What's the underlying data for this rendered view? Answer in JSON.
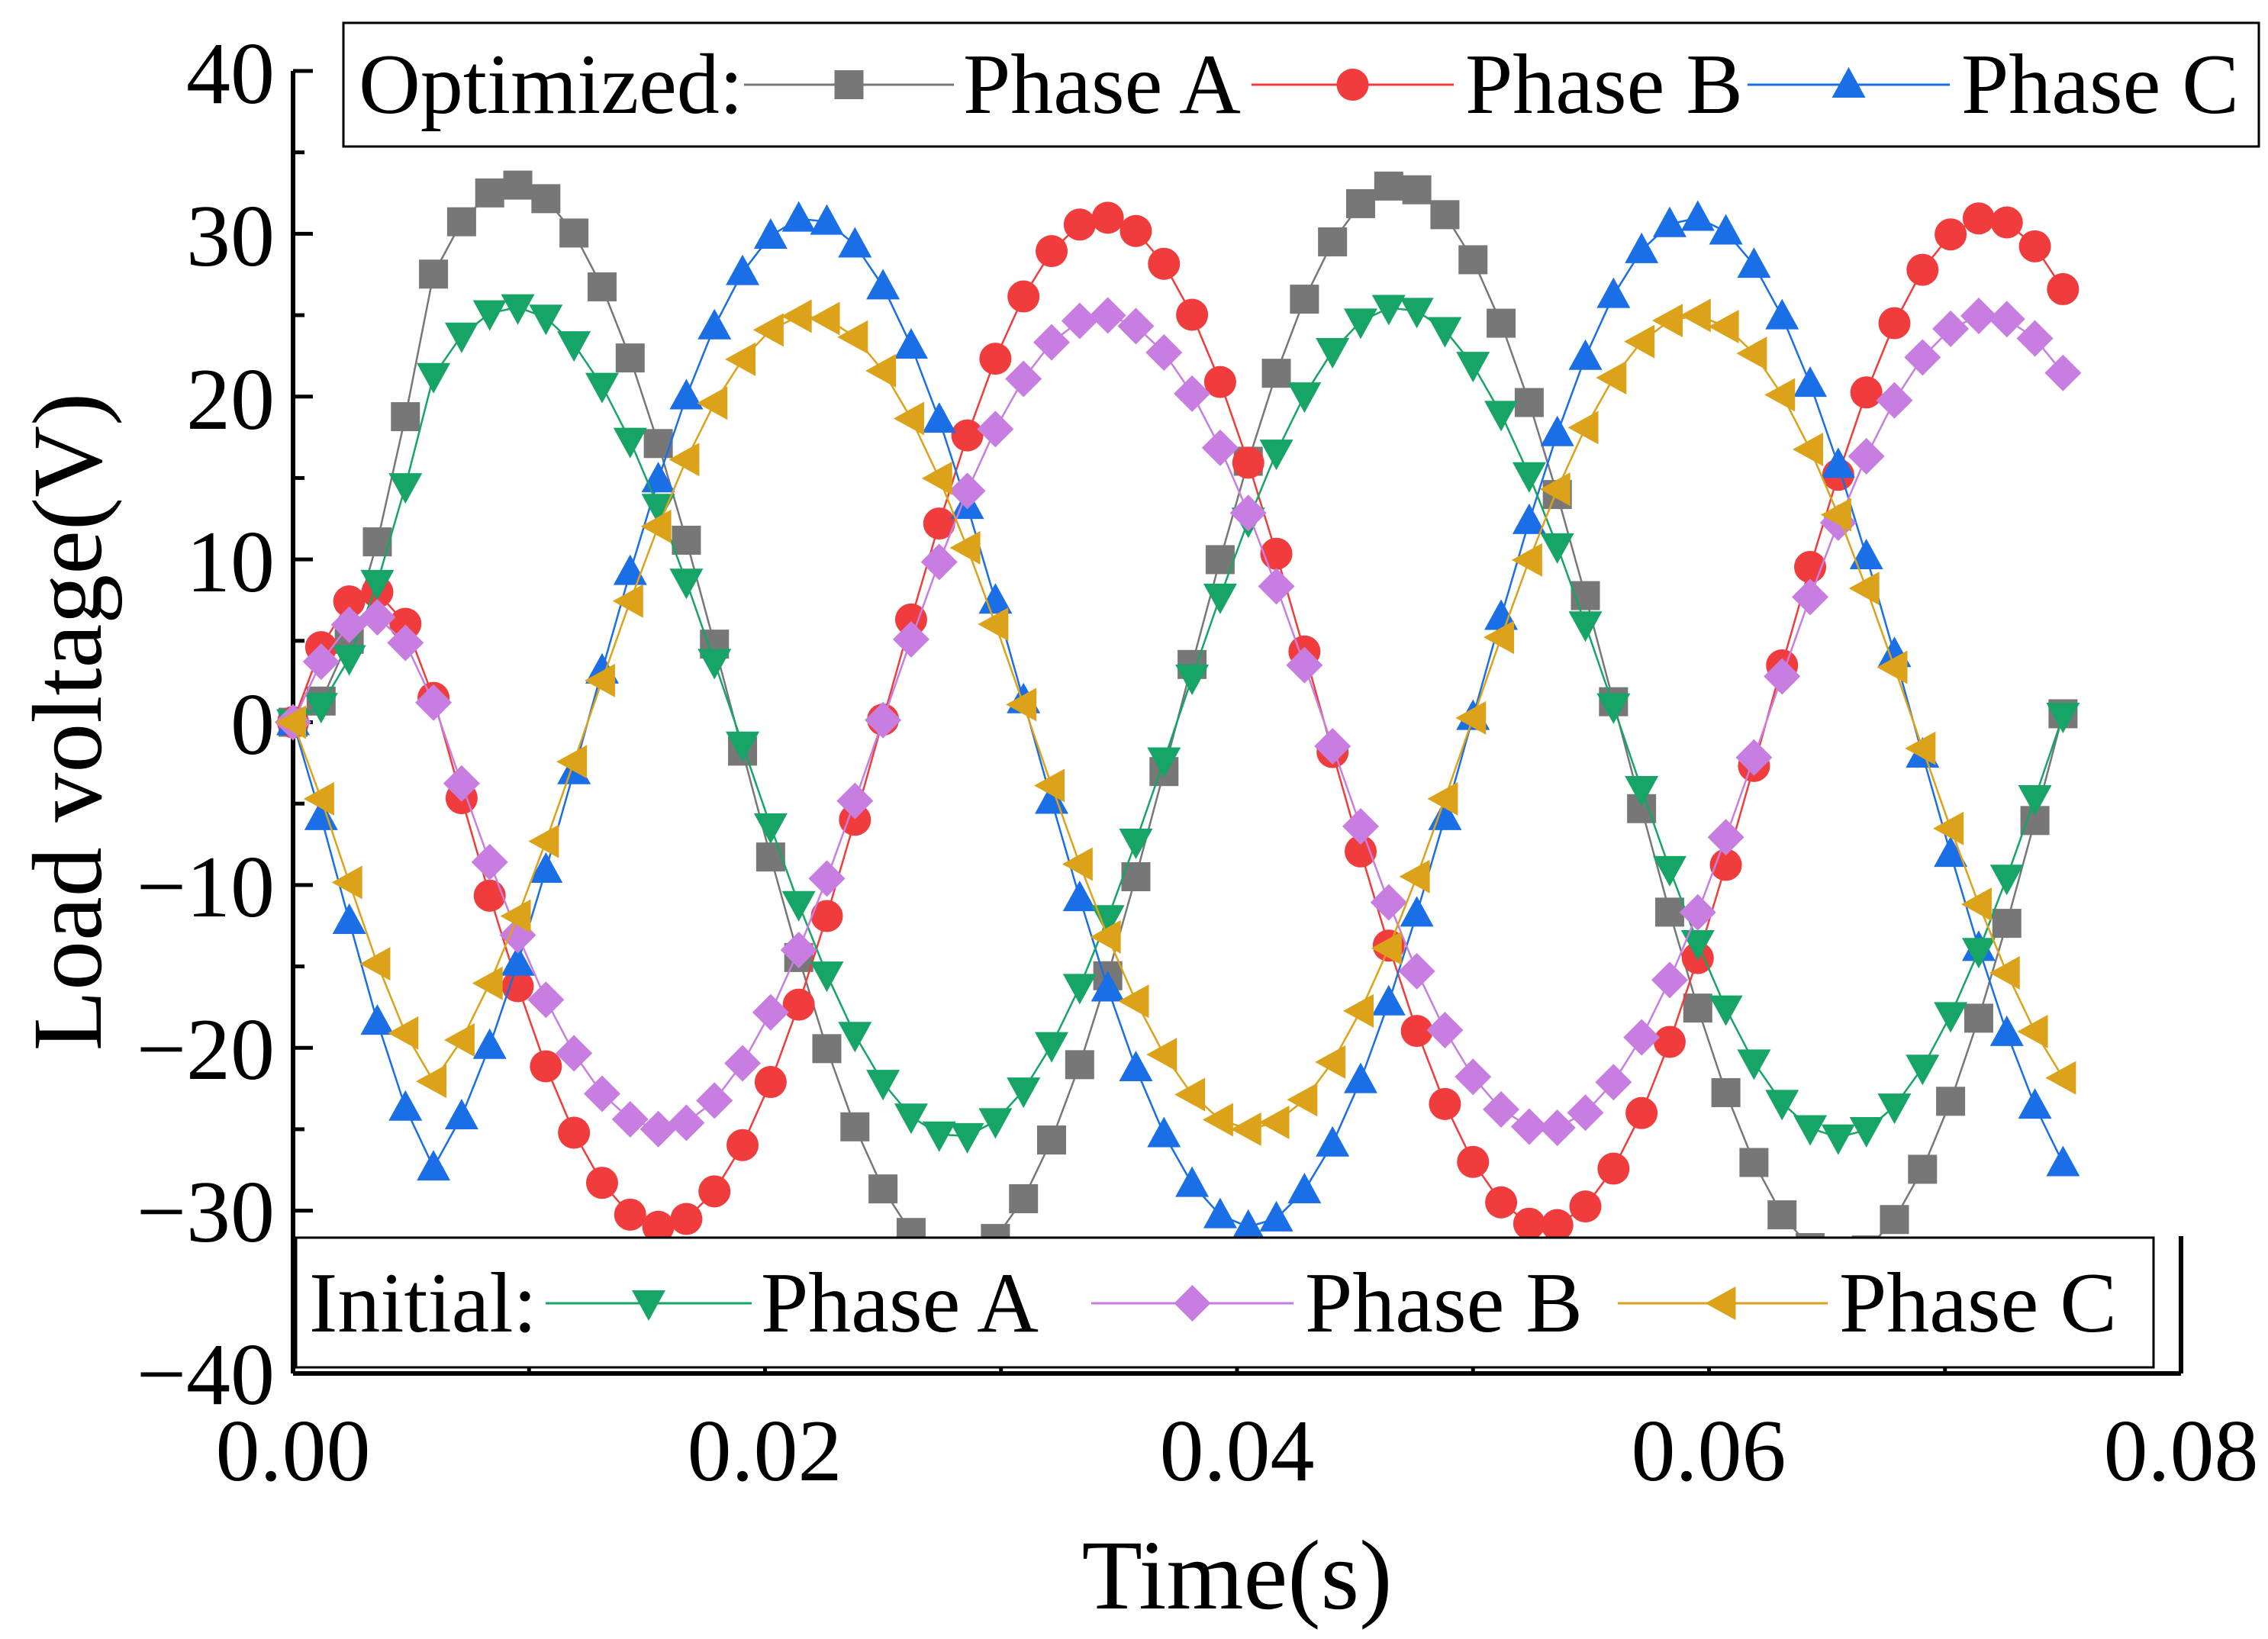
{
  "chart_data": {
    "type": "line",
    "title": "",
    "xlabel": "Time(s)",
    "ylabel": "Load voltage(V)",
    "xlim": [
      0,
      0.08
    ],
    "ylim": [
      -40,
      40
    ],
    "xticks": [
      "0.00",
      "0.02",
      "0.04",
      "0.06",
      "0.08"
    ],
    "yticks": [
      "40",
      "30",
      "20",
      "10",
      "0",
      "−10",
      "−20",
      "−30",
      "−40"
    ],
    "legend_optimized": {
      "title": "Optimized:",
      "entries": [
        "Phase A",
        "Phase B",
        "Phase C"
      ]
    },
    "legend_initial": {
      "title": "Initial:",
      "entries": [
        "Phase A",
        "Phase B",
        "Phase C"
      ]
    },
    "sampling": {
      "t_start": 0,
      "t_end": 0.075,
      "points": 64
    },
    "series": [
      {
        "group": "Optimized",
        "name": "Phase A",
        "marker": "square",
        "color": "#777777",
        "amplitude": 33,
        "frequency_hz": 26.7,
        "phase_deg": 0,
        "dc_offset": 0
      },
      {
        "group": "Optimized",
        "name": "Phase B",
        "marker": "circle",
        "color": "#f03c3c",
        "amplitude": 31,
        "frequency_hz": 26.7,
        "phase_deg": 240,
        "dc_offset": 0
      },
      {
        "group": "Optimized",
        "name": "Phase C",
        "marker": "triangle-up",
        "color": "#1a6ee6",
        "amplitude": 31,
        "frequency_hz": 26.7,
        "phase_deg": 120,
        "dc_offset": 0
      },
      {
        "group": "Initial",
        "name": "Phase A",
        "marker": "triangle-down",
        "color": "#16a566",
        "amplitude": 25.5,
        "frequency_hz": 26.7,
        "phase_deg": 0,
        "dc_offset": 0
      },
      {
        "group": "Initial",
        "name": "Phase B",
        "marker": "diamond",
        "color": "#c77ee0",
        "amplitude": 25,
        "frequency_hz": 26.7,
        "phase_deg": 240,
        "dc_offset": 0
      },
      {
        "group": "Initial",
        "name": "Phase C",
        "marker": "triangle-left",
        "color": "#dba21a",
        "amplitude": 25,
        "frequency_hz": 26.7,
        "phase_deg": 120,
        "dc_offset": 0
      }
    ]
  }
}
